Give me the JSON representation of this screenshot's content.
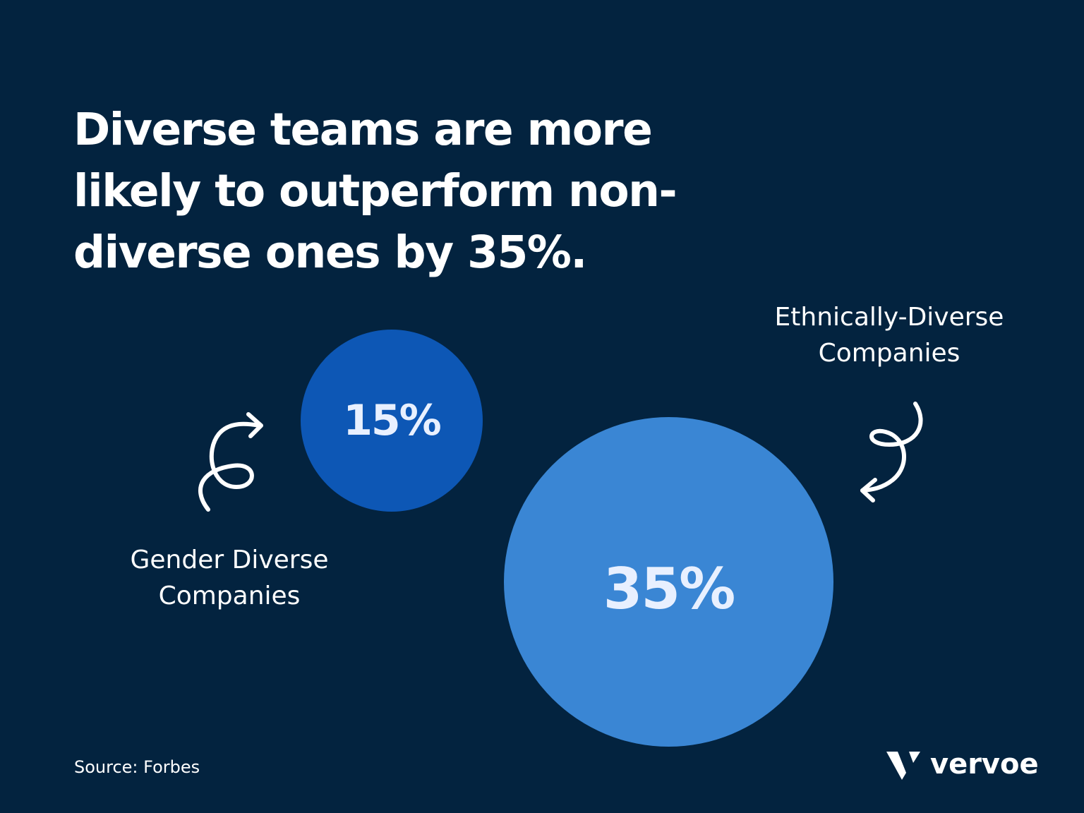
{
  "title": "Diverse teams are more likely to outperform non-diverse ones by 35%.",
  "bubbles": [
    {
      "value": "15%",
      "label": "Gender Diverse Companies",
      "color": "#0d57b5"
    },
    {
      "value": "35%",
      "label": "Ethnically-Diverse Companies",
      "color": "#3a86d4"
    }
  ],
  "source": "Source: Forbes",
  "logo": {
    "text": "vervoe"
  },
  "colors": {
    "background": "#03233f",
    "text": "#ffffff"
  }
}
